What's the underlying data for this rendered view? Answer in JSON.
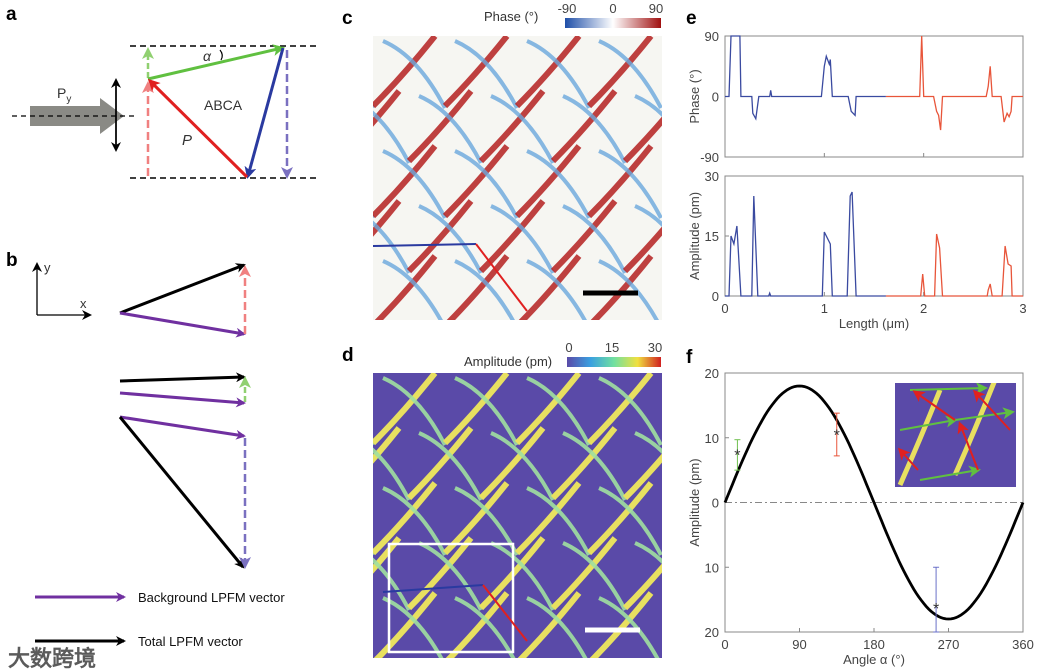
{
  "panels": {
    "a": {
      "label": "a",
      "py_label": "P",
      "py_sub": "y",
      "alpha": "α",
      "abca": "ABCA",
      "p": "P"
    },
    "b": {
      "label": "b",
      "axis_y": "y",
      "axis_x": "x",
      "legend": [
        {
          "text": "Background LPFM vector",
          "color": "#7030a0"
        },
        {
          "text": "Total LPFM vector",
          "color": "#000000"
        }
      ]
    },
    "c": {
      "label": "c",
      "colorbar_title": "Phase (°)",
      "colorbar_ticks": [
        "-90",
        "0",
        "90"
      ]
    },
    "d": {
      "label": "d",
      "colorbar_title": "Amplitude (pm)",
      "colorbar_ticks": [
        "0",
        "15",
        "30"
      ]
    },
    "e": {
      "label": "e"
    },
    "f": {
      "label": "f"
    }
  },
  "colors": {
    "blue_line": "#3a4aa0",
    "red_line": "#e8553a",
    "green": "#70c050",
    "red": "#e03020",
    "blue": "#2a3aa0",
    "pink": "#f08080",
    "lightgreen": "#90d070",
    "lavender": "#7a70c0",
    "purple": "#7030a0",
    "map_bg": "#5a4aa8"
  },
  "watermark": "大数跨境",
  "chart_data": [
    {
      "id": "e-phase",
      "type": "line",
      "ylabel": "Phase (°)",
      "xlabel": "",
      "xlim": [
        0,
        3
      ],
      "ylim": [
        -90,
        90
      ],
      "yticks": [
        "90",
        "0",
        "-90"
      ],
      "xticks": [],
      "series": [
        {
          "name": "blue segment",
          "color": "#3a4aa0",
          "points": [
            [
              0,
              0
            ],
            [
              0.04,
              0
            ],
            [
              0.06,
              90
            ],
            [
              0.15,
              90
            ],
            [
              0.16,
              0
            ],
            [
              0.27,
              0
            ],
            [
              0.28,
              -25
            ],
            [
              0.31,
              -33
            ],
            [
              0.34,
              0
            ],
            [
              0.45,
              0
            ],
            [
              0.46,
              9
            ],
            [
              0.47,
              0
            ],
            [
              0.97,
              0
            ],
            [
              1.0,
              45
            ],
            [
              1.02,
              60
            ],
            [
              1.05,
              48
            ],
            [
              1.06,
              55
            ],
            [
              1.08,
              0
            ],
            [
              1.24,
              0
            ],
            [
              1.27,
              -22
            ],
            [
              1.31,
              -28
            ],
            [
              1.32,
              0
            ],
            [
              1.62,
              0
            ]
          ]
        },
        {
          "name": "red segment",
          "color": "#e8553a",
          "points": [
            [
              1.62,
              0
            ],
            [
              1.96,
              0
            ],
            [
              1.98,
              90
            ],
            [
              2.0,
              0
            ],
            [
              2.1,
              0
            ],
            [
              2.13,
              -22
            ],
            [
              2.15,
              -28
            ],
            [
              2.17,
              -50
            ],
            [
              2.19,
              0
            ],
            [
              2.63,
              0
            ],
            [
              2.65,
              15
            ],
            [
              2.67,
              45
            ],
            [
              2.69,
              0
            ],
            [
              2.78,
              0
            ],
            [
              2.81,
              -38
            ],
            [
              2.84,
              -25
            ],
            [
              2.86,
              -30
            ],
            [
              2.88,
              -22
            ],
            [
              2.89,
              0
            ],
            [
              3,
              0
            ]
          ]
        }
      ]
    },
    {
      "id": "e-amplitude",
      "type": "line",
      "ylabel": "Amplitude (pm)",
      "xlabel": "Length (μm)",
      "xlim": [
        0,
        3
      ],
      "ylim": [
        0,
        30
      ],
      "yticks": [
        "30",
        "15",
        "0"
      ],
      "xticks": [
        "0",
        "1",
        "2",
        "3"
      ],
      "series": [
        {
          "name": "blue segment",
          "color": "#3a4aa0",
          "points": [
            [
              0,
              0
            ],
            [
              0.04,
              0
            ],
            [
              0.06,
              15
            ],
            [
              0.09,
              13
            ],
            [
              0.12,
              17.5
            ],
            [
              0.16,
              0
            ],
            [
              0.27,
              0
            ],
            [
              0.29,
              25
            ],
            [
              0.33,
              0
            ],
            [
              0.44,
              0
            ],
            [
              0.45,
              0.7
            ],
            [
              0.46,
              0
            ],
            [
              0.98,
              0
            ],
            [
              1.0,
              16
            ],
            [
              1.03,
              14.5
            ],
            [
              1.06,
              13
            ],
            [
              1.08,
              0
            ],
            [
              1.23,
              0
            ],
            [
              1.26,
              25
            ],
            [
              1.28,
              26
            ],
            [
              1.32,
              0
            ],
            [
              1.62,
              0
            ]
          ]
        },
        {
          "name": "red segment",
          "color": "#e8553a",
          "points": [
            [
              1.62,
              0
            ],
            [
              1.97,
              0
            ],
            [
              1.99,
              5.5
            ],
            [
              2.01,
              0
            ],
            [
              2.11,
              0
            ],
            [
              2.13,
              15.5
            ],
            [
              2.16,
              12
            ],
            [
              2.19,
              0
            ],
            [
              2.64,
              0
            ],
            [
              2.65,
              1.5
            ],
            [
              2.67,
              3
            ],
            [
              2.69,
              0
            ],
            [
              2.79,
              0
            ],
            [
              2.82,
              12.5
            ],
            [
              2.85,
              8
            ],
            [
              2.88,
              7.5
            ],
            [
              2.89,
              0
            ],
            [
              3,
              0
            ]
          ]
        }
      ]
    },
    {
      "id": "f-amplitude-vs-angle",
      "type": "line",
      "ylabel": "Amplitude (pm)",
      "xlabel": "Angle α (°)",
      "xlim": [
        0,
        360
      ],
      "ylim": [
        -20,
        20
      ],
      "yticks": [
        "20",
        "10",
        "0",
        "10",
        "20"
      ],
      "xticks": [
        "0",
        "90",
        "180",
        "270",
        "360"
      ],
      "curve": {
        "name": "fit",
        "amplitude": 18,
        "function": "A*sin(α)",
        "color": "#000000"
      },
      "zero_line": {
        "style": "dash-dot",
        "color": "#888888"
      },
      "points": [
        {
          "x": 15,
          "y": 7.4,
          "err_low": 5.0,
          "err_high": 9.7,
          "color": "#70c050"
        },
        {
          "x": 135,
          "y": 10.5,
          "err_low": 7.2,
          "err_high": 13.8,
          "color": "#e8553a"
        },
        {
          "x": 255,
          "y": -16.3,
          "err_low": -20,
          "err_high": -10,
          "color": "#6a70c8"
        }
      ]
    }
  ]
}
